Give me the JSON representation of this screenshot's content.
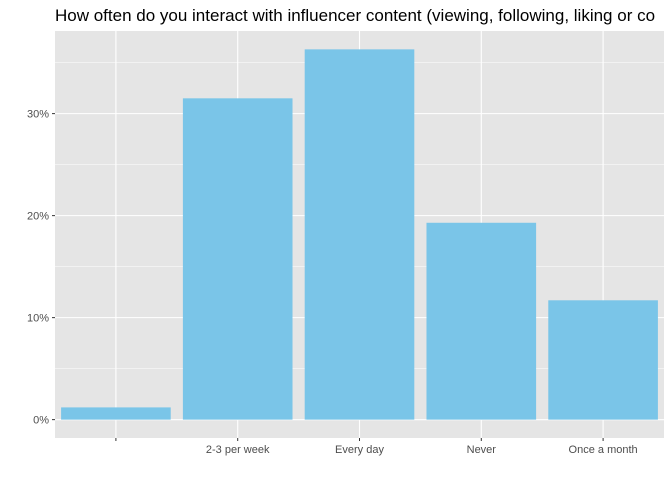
{
  "chart_data": {
    "type": "bar",
    "title": "How often do you interact with influencer content (viewing, following, liking or co",
    "xlabel": "",
    "ylabel": "",
    "categories": [
      "",
      "2-3 per week",
      "Every day",
      "Never",
      "Once a month"
    ],
    "values": [
      1.2,
      31.5,
      36.3,
      19.3,
      11.7
    ],
    "y_unit": "%",
    "ylim": [
      -1.8,
      38.1
    ],
    "y_ticks": [
      0,
      10,
      20,
      30
    ],
    "y_tick_labels": [
      "0%",
      "10%",
      "20%",
      "30%"
    ],
    "grid": true,
    "legend": "none",
    "colors": {
      "bar": "#7AC5E8",
      "panel": "#E5E5E5",
      "grid": "#FFFFFF",
      "text": "#4D4D4D",
      "title": "#000000"
    }
  }
}
